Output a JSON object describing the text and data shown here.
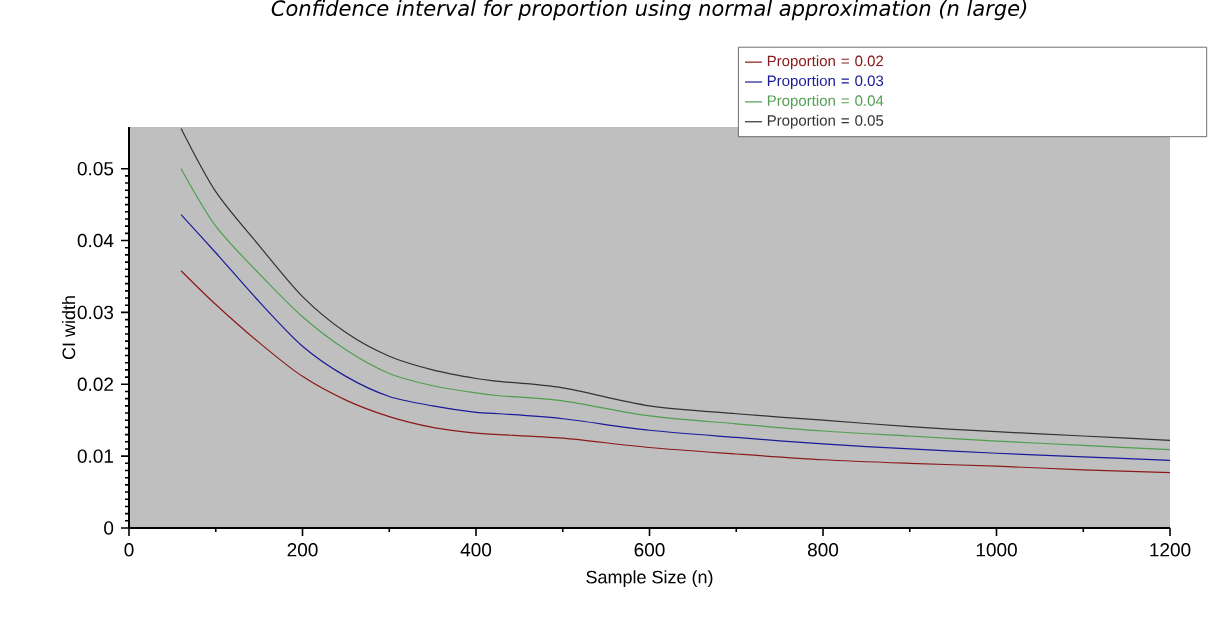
{
  "chart_data": {
    "type": "line",
    "title": "Confidence interval for proportion using normal approximation (n large)",
    "xlabel": "Sample Size (n)",
    "ylabel": "CI width",
    "x": [
      60,
      100,
      150,
      200,
      250,
      300,
      350,
      400,
      427,
      500,
      600,
      700,
      800,
      900,
      1000,
      1100,
      1200
    ],
    "series": [
      {
        "name": "Proportion = 0.02",
        "color": "#8b1a1a",
        "values": [
          0.0358,
          0.0311,
          0.0258,
          0.0211,
          0.0178,
          0.0155,
          0.014,
          0.0132,
          0.013,
          0.0125,
          0.0112,
          0.0103,
          0.0095,
          0.009,
          0.0086,
          0.0081,
          0.0077
        ]
      },
      {
        "name": "Proportion = 0.03",
        "color": "#1a1a9a",
        "values": [
          0.0436,
          0.0383,
          0.0315,
          0.0253,
          0.0211,
          0.0183,
          0.017,
          0.0161,
          0.0159,
          0.0152,
          0.0136,
          0.0126,
          0.0117,
          0.011,
          0.0104,
          0.0099,
          0.0094
        ]
      },
      {
        "name": "Proportion = 0.04",
        "color": "#4f9f4f",
        "values": [
          0.05,
          0.042,
          0.0354,
          0.0294,
          0.0248,
          0.0215,
          0.0198,
          0.0188,
          0.0184,
          0.0177,
          0.0156,
          0.0145,
          0.0135,
          0.0128,
          0.0121,
          0.0115,
          0.0109
        ]
      },
      {
        "name": "Proportion = 0.05",
        "color": "#333333",
        "values": [
          0.0556,
          0.0468,
          0.0393,
          0.0322,
          0.0272,
          0.0239,
          0.022,
          0.0208,
          0.0204,
          0.0195,
          0.017,
          0.0159,
          0.015,
          0.0141,
          0.0134,
          0.0128,
          0.0122
        ]
      }
    ],
    "xlim": [
      0,
      1200
    ],
    "ylim": [
      0,
      0.0558
    ],
    "xticks": [
      0,
      200,
      400,
      600,
      800,
      1000,
      1200
    ],
    "yticks": [
      0,
      0.01,
      0.02,
      0.03,
      0.04,
      0.05
    ],
    "grid": false,
    "legend": "top right",
    "marker": "none",
    "line_style": "solid"
  }
}
